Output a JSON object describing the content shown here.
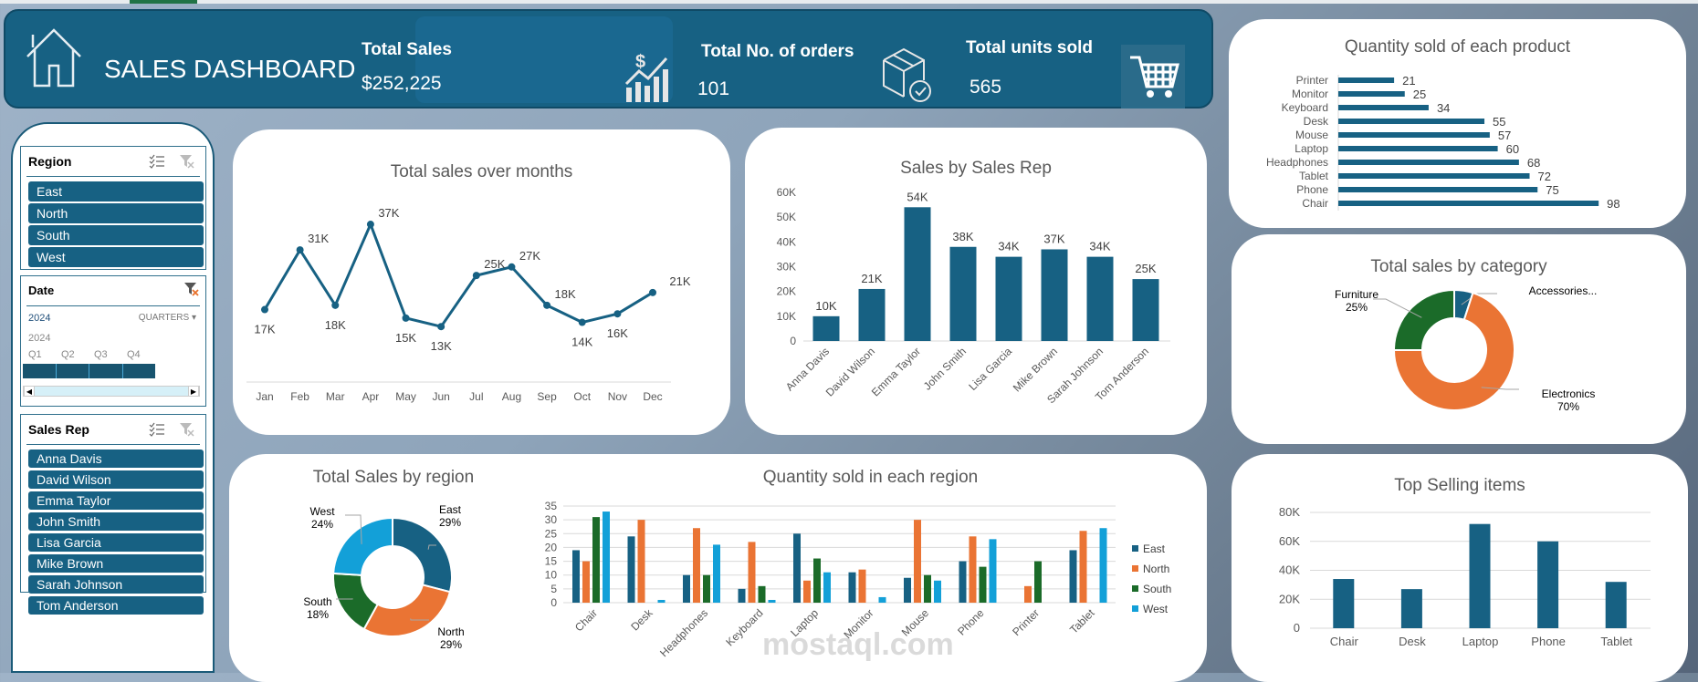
{
  "header": {
    "title": "SALES DASHBOARD",
    "kpis": [
      {
        "label": "Total Sales",
        "value": "$252,225",
        "icon": "sales-growth-icon"
      },
      {
        "label": "Total No. of orders",
        "value": "101",
        "icon": "package-check-icon"
      },
      {
        "label": "Total units sold",
        "value": "565",
        "icon": "shopping-cart-icon"
      }
    ]
  },
  "slicers": {
    "region": {
      "title": "Region",
      "items": [
        "East",
        "North",
        "South",
        "West"
      ]
    },
    "date": {
      "title": "Date",
      "selected": "2024",
      "level": "QUARTERS",
      "year": "2024",
      "quarters": [
        "Q1",
        "Q2",
        "Q3",
        "Q4"
      ]
    },
    "sales_rep": {
      "title": "Sales Rep",
      "items": [
        "Anna Davis",
        "David Wilson",
        "Emma Taylor",
        "John Smith",
        "Lisa Garcia",
        "Mike Brown",
        "Sarah Johnson",
        "Tom Anderson"
      ]
    }
  },
  "colors": {
    "primary": "#176183",
    "east": "#176183",
    "north": "#ea7434",
    "south": "#1b6b29",
    "west": "#13a0d8"
  },
  "chart_data": [
    {
      "id": "months",
      "type": "line",
      "title": "Total sales over months",
      "categories": [
        "Jan",
        "Feb",
        "Mar",
        "Apr",
        "May",
        "Jun",
        "Jul",
        "Aug",
        "Sep",
        "Oct",
        "Nov",
        "Dec"
      ],
      "values": [
        17,
        31,
        18,
        37,
        15,
        13,
        25,
        27,
        18,
        14,
        16,
        21
      ],
      "labels": [
        "17K",
        "31K",
        "18K",
        "37K",
        "15K",
        "13K",
        "25K",
        "27K",
        "18K",
        "14K",
        "16K",
        "21K"
      ],
      "unit": "K"
    },
    {
      "id": "rep",
      "type": "bar",
      "title": "Sales by Sales Rep",
      "categories": [
        "Anna Davis",
        "David Wilson",
        "Emma Taylor",
        "John Smith",
        "Lisa Garcia",
        "Mike Brown",
        "Sarah Johnson",
        "Tom Anderson"
      ],
      "values": [
        10,
        21,
        54,
        38,
        34,
        37,
        34,
        25
      ],
      "labels": [
        "10K",
        "21K",
        "54K",
        "38K",
        "34K",
        "37K",
        "34K",
        "25K"
      ],
      "yticks": [
        "0",
        "10K",
        "20K",
        "30K",
        "40K",
        "50K",
        "60K"
      ],
      "ylim": [
        0,
        60
      ],
      "grid": false
    },
    {
      "id": "product",
      "type": "bar",
      "orientation": "horizontal",
      "title": "Quantity sold of each product",
      "categories": [
        "Printer",
        "Monitor",
        "Keyboard",
        "Desk",
        "Mouse",
        "Laptop",
        "Headphones",
        "Tablet",
        "Phone",
        "Chair"
      ],
      "values": [
        21,
        25,
        34,
        55,
        57,
        60,
        68,
        72,
        75,
        98
      ]
    },
    {
      "id": "category",
      "type": "pie",
      "donut": true,
      "title": "Total sales by category",
      "slices": [
        {
          "name": "Accessories...",
          "value": 5,
          "label": ""
        },
        {
          "name": "Electronics",
          "value": 70,
          "label": "70%"
        },
        {
          "name": "Furniture",
          "value": 25,
          "label": "25%"
        }
      ]
    },
    {
      "id": "region",
      "type": "pie",
      "donut": true,
      "title": "Total Sales by region",
      "slices": [
        {
          "name": "East",
          "value": 29,
          "label": "29%"
        },
        {
          "name": "North",
          "value": 29,
          "label": "29%"
        },
        {
          "name": "South",
          "value": 18,
          "label": "18%"
        },
        {
          "name": "West",
          "value": 24,
          "label": "24%"
        }
      ]
    },
    {
      "id": "qregion",
      "type": "bar",
      "title": "Quantity sold in each region",
      "categories": [
        "Chair",
        "Desk",
        "Headphones",
        "Keyboard",
        "Laptop",
        "Monitor",
        "Mouse",
        "Phone",
        "Printer",
        "Tablet"
      ],
      "yticks": [
        "0",
        "5",
        "10",
        "15",
        "20",
        "25",
        "30",
        "35"
      ],
      "ylim": [
        0,
        35
      ],
      "grid": true,
      "legend": "right",
      "series": [
        {
          "name": "East",
          "values": [
            19,
            24,
            10,
            5,
            25,
            11,
            9,
            15,
            0,
            19
          ]
        },
        {
          "name": "North",
          "values": [
            15,
            30,
            27,
            22,
            8,
            12,
            30,
            24,
            6,
            26
          ]
        },
        {
          "name": "South",
          "values": [
            31,
            0,
            10,
            6,
            16,
            0,
            10,
            13,
            15,
            0
          ]
        },
        {
          "name": "West",
          "values": [
            33,
            1,
            21,
            1,
            11,
            2,
            8,
            23,
            0,
            27
          ]
        }
      ]
    },
    {
      "id": "top",
      "type": "bar",
      "title": "Top Selling items",
      "categories": [
        "Chair",
        "Desk",
        "Laptop",
        "Phone",
        "Tablet"
      ],
      "values": [
        34,
        27,
        72,
        60,
        32
      ],
      "yticks": [
        "0",
        "20K",
        "40K",
        "60K",
        "80K"
      ],
      "ylim": [
        0,
        80
      ],
      "grid": true
    }
  ],
  "watermark": "mostaql.com"
}
